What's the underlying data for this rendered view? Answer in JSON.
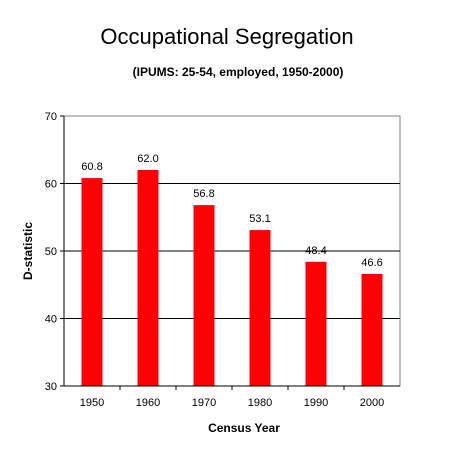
{
  "chart_data": {
    "type": "bar",
    "title": "Occupational Segregation",
    "subtitle": "(IPUMS: 25-54, employed, 1950-2000)",
    "xlabel": "Census Year",
    "ylabel": "D-statistic",
    "categories": [
      "1950",
      "1960",
      "1970",
      "1980",
      "1990",
      "2000"
    ],
    "values": [
      60.8,
      62.0,
      56.8,
      53.1,
      48.4,
      46.6
    ],
    "data_labels": [
      "60.8",
      "62.0",
      "56.8",
      "53.1",
      "48.4",
      "46.6"
    ],
    "yticks": [
      30,
      40,
      50,
      60,
      70
    ],
    "ylim": [
      30,
      70
    ],
    "grid": true,
    "legend": false,
    "bar_color": "#ff0000",
    "plot_background": "#ffffff",
    "gridline_color": "#000000"
  }
}
